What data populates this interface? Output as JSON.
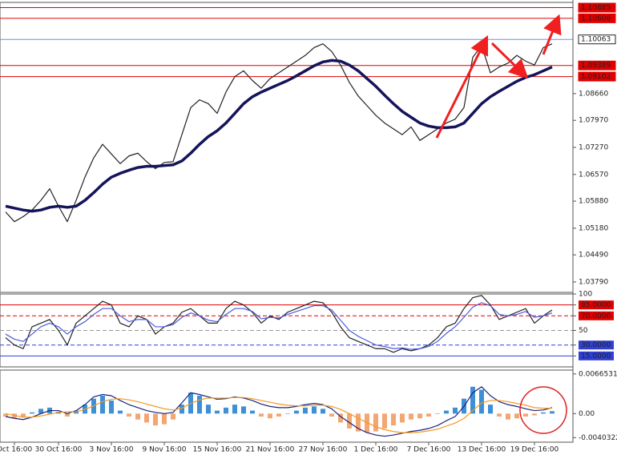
{
  "chart_data": [
    {
      "type": "line",
      "categories": [
        null,
        "Oct 16:00",
        null,
        null,
        null,
        null,
        "30 Oct 16:00",
        null,
        null,
        null,
        null,
        null,
        "3 Nov 16:00",
        null,
        null,
        null,
        null,
        null,
        "9 Nov 16:00",
        null,
        null,
        null,
        null,
        null,
        "15 Nov 16:00",
        null,
        null,
        null,
        null,
        null,
        "21 Nov 16:00",
        null,
        null,
        null,
        null,
        null,
        "27 Nov 16:00",
        null,
        null,
        null,
        null,
        null,
        "1 Dec 16:00",
        null,
        null,
        null,
        null,
        null,
        "7 Dec 16:00",
        null,
        null,
        null,
        null,
        null,
        "13 Dec 16:00",
        null,
        null,
        null,
        null,
        null,
        "19 Dec 16:00",
        null,
        null
      ],
      "series": [
        {
          "color": "#222222",
          "values": [
            1.056,
            1.0535,
            1.0548,
            1.0565,
            1.059,
            1.062,
            1.0575,
            1.0535,
            1.059,
            1.065,
            1.07,
            1.0735,
            1.071,
            1.0685,
            1.0705,
            1.0712,
            1.069,
            1.0672,
            1.0688,
            1.069,
            1.076,
            1.083,
            1.085,
            1.084,
            1.0815,
            1.087,
            1.091,
            1.0925,
            1.09,
            1.088,
            1.0905,
            1.092,
            1.0935,
            1.095,
            1.0965,
            1.0985,
            1.0995,
            1.0975,
            1.094,
            1.0895,
            1.086,
            1.0835,
            1.081,
            1.079,
            1.0775,
            1.076,
            1.078,
            1.0745,
            1.076,
            1.0775,
            1.079,
            1.08,
            1.083,
            1.096,
            1.099,
            1.092,
            1.0935,
            1.0945,
            1.0965,
            1.095,
            1.094,
            1.0985,
            1.0995
          ]
        },
        {
          "color": "#14145a",
          "values": [
            1.0575,
            1.057,
            1.0565,
            1.0562,
            1.0565,
            1.0572,
            1.0575,
            1.0572,
            1.0575,
            1.059,
            1.061,
            1.0632,
            1.065,
            1.066,
            1.0668,
            1.0675,
            1.0678,
            1.0678,
            1.068,
            1.0682,
            1.0692,
            1.0712,
            1.0735,
            1.0755,
            1.077,
            1.079,
            1.0815,
            1.084,
            1.0858,
            1.087,
            1.088,
            1.089,
            1.09,
            1.0912,
            1.0925,
            1.0938,
            1.0948,
            1.0952,
            1.095,
            1.094,
            1.0925,
            1.0905,
            1.0885,
            1.0862,
            1.084,
            1.082,
            1.0805,
            1.079,
            1.0782,
            1.0778,
            1.0778,
            1.078,
            1.079,
            1.0815,
            1.084,
            1.0858,
            1.0872,
            1.0885,
            1.0898,
            1.0908,
            1.0915,
            1.0925,
            1.0935
          ]
        }
      ],
      "ylim": [
        1.0352,
        1.1102
      ],
      "yticks": [
        {
          "value": 1.0866,
          "label": "1.08660"
        },
        {
          "value": 1.0797,
          "label": "1.07970"
        },
        {
          "value": 1.0727,
          "label": "1.07270"
        },
        {
          "value": 1.0657,
          "label": "1.06570"
        },
        {
          "value": 1.0588,
          "label": "1.05880"
        },
        {
          "value": 1.0518,
          "label": "1.05180"
        },
        {
          "value": 1.0449,
          "label": "1.04490"
        },
        {
          "value": 1.0379,
          "label": "1.03790"
        }
      ],
      "levels": [
        {
          "value": 1.10885,
          "color": "#e00000"
        },
        {
          "value": 1.10608,
          "color": "#e00000"
        },
        {
          "value": 1.10063,
          "color": "#6f8fd8"
        },
        {
          "value": 1.09389,
          "color": "#e00000"
        },
        {
          "value": 1.09102,
          "color": "#e00000"
        }
      ]
    },
    {
      "type": "line",
      "series": [
        {
          "color": "#222222",
          "values": [
            40,
            30,
            25,
            55,
            60,
            65,
            50,
            30,
            60,
            70,
            80,
            90,
            85,
            60,
            55,
            70,
            65,
            45,
            55,
            60,
            75,
            80,
            70,
            60,
            60,
            80,
            90,
            85,
            75,
            60,
            70,
            65,
            75,
            80,
            85,
            90,
            88,
            75,
            55,
            40,
            35,
            30,
            25,
            25,
            20,
            25,
            22,
            25,
            30,
            40,
            55,
            60,
            80,
            95,
            98,
            85,
            65,
            70,
            75,
            80,
            60,
            70,
            78
          ]
        },
        {
          "color": "#4a5be0",
          "values": [
            45,
            38,
            35,
            45,
            55,
            60,
            55,
            45,
            55,
            62,
            72,
            80,
            80,
            70,
            62,
            65,
            65,
            55,
            55,
            58,
            68,
            74,
            70,
            64,
            62,
            72,
            80,
            80,
            76,
            66,
            68,
            67,
            72,
            76,
            80,
            84,
            84,
            78,
            64,
            50,
            42,
            36,
            30,
            28,
            25,
            26,
            24,
            25,
            28,
            35,
            46,
            55,
            68,
            82,
            88,
            84,
            72,
            70,
            72,
            76,
            68,
            70,
            74
          ]
        }
      ],
      "ylim": [
        0,
        100
      ],
      "yticks": [
        100,
        {
          "value": 85,
          "label": "85.0000"
        },
        {
          "value": 70,
          "label": "70.0000"
        },
        50,
        {
          "value": 30,
          "label": "30.0000"
        },
        {
          "value": 15,
          "label": "15.0000"
        }
      ],
      "levels": [
        {
          "value": 85,
          "color": "#e00000"
        },
        {
          "value": 70,
          "color": "#e00000",
          "dash": true
        },
        {
          "value": 50,
          "color": "#999999",
          "dash": true
        },
        {
          "value": 30,
          "color": "#3040d0",
          "dash": true
        },
        {
          "value": 15,
          "color": "#3040d0"
        }
      ]
    },
    {
      "type": "bar",
      "series": [
        {
          "color": "#3d8fd6",
          "negative_color": "#f4a672",
          "values": [
            -0.0005,
            -0.0008,
            -0.0005,
            0.0002,
            0.0008,
            0.001,
            0.0003,
            -0.0005,
            0.0005,
            0.0015,
            0.0025,
            0.003,
            0.0022,
            0.0005,
            -0.0005,
            -0.001,
            -0.0015,
            -0.002,
            -0.0018,
            -0.001,
            0.0015,
            0.0035,
            0.003,
            0.0015,
            0.0005,
            0.001,
            0.0015,
            0.0012,
            0.0005,
            -0.0005,
            -0.0008,
            -0.0005,
            0.0,
            0.0005,
            0.001,
            0.0012,
            0.0008,
            -0.0005,
            -0.0015,
            -0.0025,
            -0.003,
            -0.0032,
            -0.003,
            -0.0025,
            -0.002,
            -0.0015,
            -0.001,
            -0.0008,
            -0.0005,
            0.0,
            0.0005,
            0.001,
            0.0025,
            0.0045,
            0.004,
            0.0015,
            -0.0005,
            -0.001,
            -0.0008,
            -0.0005,
            -0.0003,
            0.0002,
            0.0004
          ]
        },
        {
          "type": "line",
          "color": "#1a237e",
          "values": [
            -0.0005,
            -0.0008,
            -0.001,
            -0.0006,
            0.0,
            0.0005,
            0.0005,
            0.0,
            0.0005,
            0.0015,
            0.0028,
            0.0032,
            0.003,
            0.0022,
            0.0015,
            0.001,
            0.0005,
            0.0002,
            0.0,
            0.0002,
            0.0018,
            0.0035,
            0.0032,
            0.0028,
            0.0024,
            0.0025,
            0.0028,
            0.0026,
            0.0022,
            0.0016,
            0.0012,
            0.001,
            0.001,
            0.0012,
            0.0015,
            0.0017,
            0.0015,
            0.0008,
            -0.0005,
            -0.0015,
            -0.0025,
            -0.0032,
            -0.0036,
            -0.0038,
            -0.0036,
            -0.0033,
            -0.003,
            -0.0028,
            -0.0025,
            -0.002,
            -0.0012,
            -0.0005,
            0.0012,
            0.0035,
            0.0045,
            0.003,
            0.002,
            0.0015,
            0.0012,
            0.0008,
            0.0005,
            0.0006,
            0.001
          ]
        },
        {
          "type": "line",
          "color": "#f39a1e",
          "values": [
            0.0,
            -0.0003,
            -0.0006,
            -0.0006,
            -0.0004,
            -0.0001,
            0.0002,
            0.0003,
            0.0003,
            0.0007,
            0.0013,
            0.002,
            0.0024,
            0.0025,
            0.0023,
            0.002,
            0.0016,
            0.0012,
            0.0008,
            0.0006,
            0.0009,
            0.0017,
            0.0023,
            0.0026,
            0.0026,
            0.0026,
            0.0027,
            0.0027,
            0.0025,
            0.0022,
            0.0019,
            0.0016,
            0.0014,
            0.0013,
            0.0013,
            0.0014,
            0.0014,
            0.0012,
            0.0007,
            0.0,
            -0.0008,
            -0.0015,
            -0.0022,
            -0.0027,
            -0.003,
            -0.0032,
            -0.0032,
            -0.0031,
            -0.0029,
            -0.0026,
            -0.0021,
            -0.0016,
            -0.0008,
            0.0005,
            0.0018,
            0.0022,
            0.0022,
            0.002,
            0.0017,
            0.0014,
            0.001,
            0.0009,
            0.0009
          ]
        }
      ],
      "ylim": [
        -0.0048,
        0.0073
      ],
      "yticks": [
        0.0066531,
        {
          "value": 0,
          "label": "0.00"
        },
        -0.0040322
      ]
    }
  ]
}
